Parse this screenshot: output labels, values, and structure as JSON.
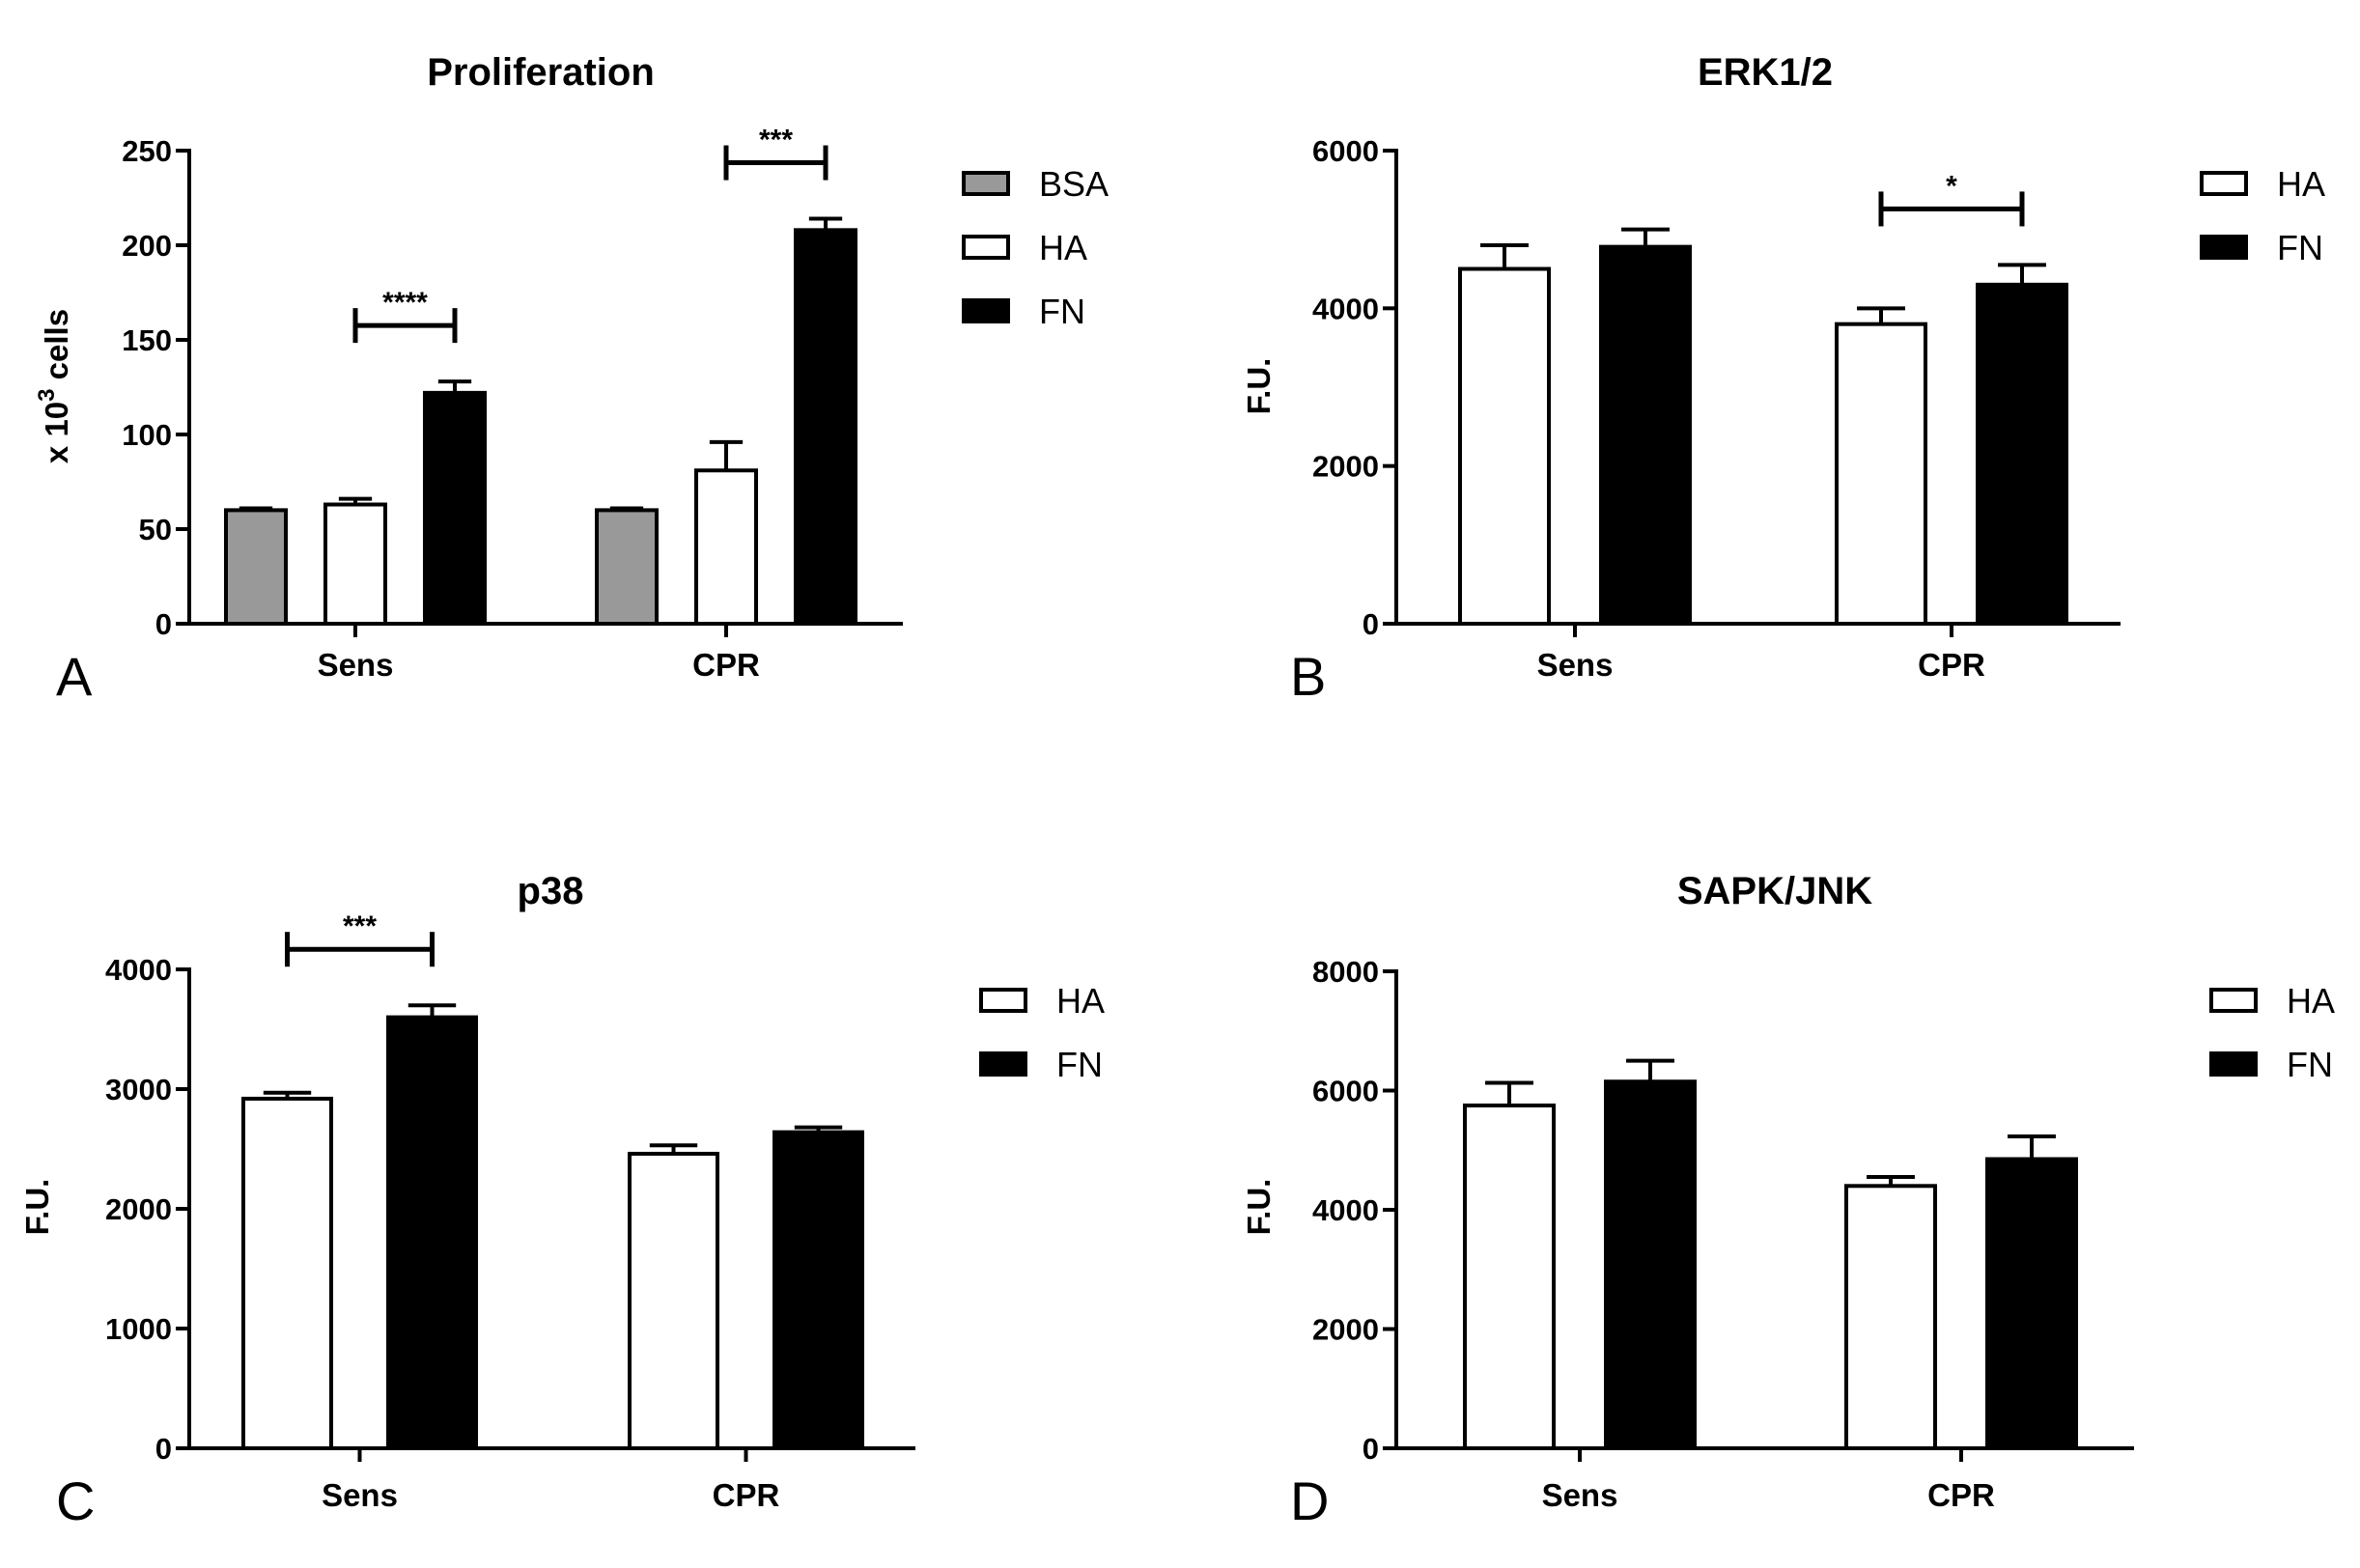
{
  "chart_data": [
    {
      "panel": "A",
      "type": "bar",
      "title": "Proliferation",
      "ylabel_prefix": "x 10",
      "ylabel_sup": "3",
      "ylabel_suffix": " cells",
      "ylim": [
        0,
        250
      ],
      "yticks": [
        "0",
        "50",
        "100",
        "150",
        "200",
        "250"
      ],
      "categories": [
        "Sens",
        "CPR"
      ],
      "series": [
        {
          "name": "BSA",
          "color": "#999999",
          "values": [
            60,
            60
          ],
          "errors": [
            1,
            1
          ]
        },
        {
          "name": "HA",
          "color": "#ffffff",
          "values": [
            63,
            81
          ],
          "errors": [
            3,
            15
          ]
        },
        {
          "name": "FN",
          "color": "#000000",
          "values": [
            122,
            208
          ],
          "errors": [
            6,
            6
          ]
        }
      ],
      "significance": [
        {
          "category": 0,
          "from_series": 1,
          "to_series": 2,
          "label": "****"
        },
        {
          "category": 1,
          "from_series": 1,
          "to_series": 2,
          "label": "***"
        }
      ]
    },
    {
      "panel": "B",
      "type": "bar",
      "title": "ERK1/2",
      "ylabel": "F.U.",
      "ylim": [
        0,
        6000
      ],
      "yticks": [
        "0",
        "2000",
        "4000",
        "6000"
      ],
      "categories": [
        "Sens",
        "CPR"
      ],
      "series": [
        {
          "name": "HA",
          "color": "#ffffff",
          "values": [
            4500,
            3800
          ],
          "errors": [
            300,
            200
          ]
        },
        {
          "name": "FN",
          "color": "#000000",
          "values": [
            4780,
            4300
          ],
          "errors": [
            220,
            250
          ]
        }
      ],
      "significance": [
        {
          "category": 1,
          "from_series": 0,
          "to_series": 1,
          "label": "*"
        }
      ]
    },
    {
      "panel": "C",
      "type": "bar",
      "title": "p38",
      "ylabel": "F.U.",
      "ylim": [
        0,
        4000
      ],
      "yticks": [
        "0",
        "1000",
        "2000",
        "3000",
        "4000"
      ],
      "categories": [
        "Sens",
        "CPR"
      ],
      "series": [
        {
          "name": "HA",
          "color": "#ffffff",
          "values": [
            2920,
            2460
          ],
          "errors": [
            50,
            70
          ]
        },
        {
          "name": "FN",
          "color": "#000000",
          "values": [
            3600,
            2640
          ],
          "errors": [
            100,
            40
          ]
        }
      ],
      "significance": [
        {
          "category": 0,
          "from_series": 0,
          "to_series": 1,
          "label": "***"
        }
      ]
    },
    {
      "panel": "D",
      "type": "bar",
      "title": "SAPK/JNK",
      "ylabel": "F.U.",
      "ylim": [
        0,
        8000
      ],
      "yticks": [
        "0",
        "2000",
        "4000",
        "6000",
        "8000"
      ],
      "categories": [
        "Sens",
        "CPR"
      ],
      "series": [
        {
          "name": "HA",
          "color": "#ffffff",
          "values": [
            5750,
            4400
          ],
          "errors": [
            380,
            150
          ]
        },
        {
          "name": "FN",
          "color": "#000000",
          "values": [
            6150,
            4850
          ],
          "errors": [
            350,
            380
          ]
        }
      ],
      "significance": []
    }
  ]
}
